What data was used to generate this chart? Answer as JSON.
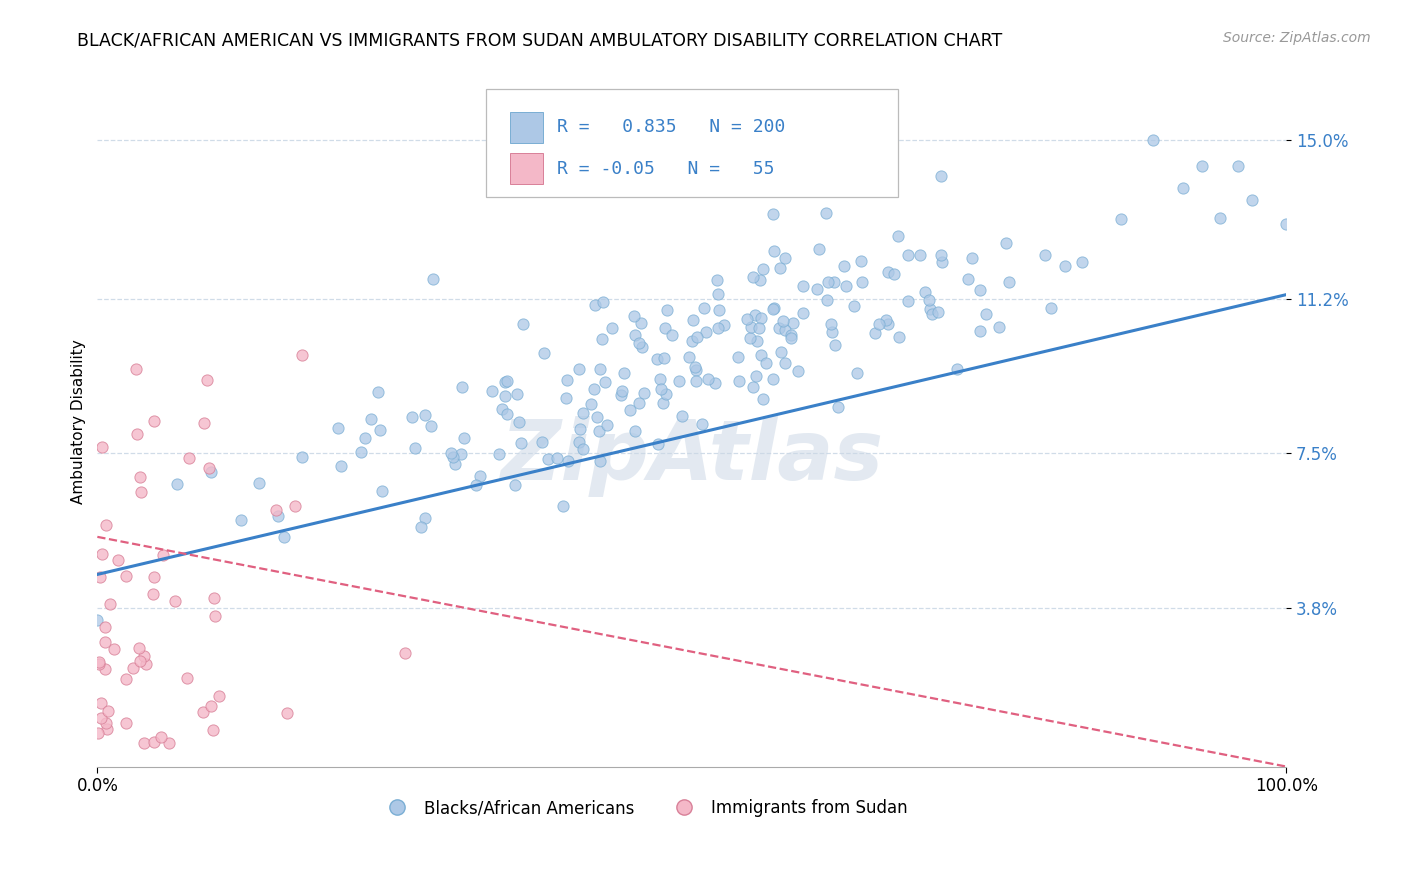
{
  "title": "BLACK/AFRICAN AMERICAN VS IMMIGRANTS FROM SUDAN AMBULATORY DISABILITY CORRELATION CHART",
  "source": "Source: ZipAtlas.com",
  "ylabel": "Ambulatory Disability",
  "xmin": 0.0,
  "xmax": 100.0,
  "ymin": 0.0,
  "ymax": 0.165,
  "yticks": [
    0.038,
    0.075,
    0.112,
    0.15
  ],
  "ytick_labels": [
    "3.8%",
    "7.5%",
    "11.2%",
    "15.0%"
  ],
  "xtick_labels": [
    "0.0%",
    "100.0%"
  ],
  "blue_R": 0.835,
  "blue_N": 200,
  "pink_R": -0.05,
  "pink_N": 55,
  "blue_color": "#adc8e6",
  "blue_line_color": "#3a80c8",
  "blue_edge_color": "#7aaed4",
  "pink_color": "#f4b8c8",
  "pink_line_color": "#e06080",
  "pink_edge_color": "#d88098",
  "label_color": "#3a80c8",
  "grid_color": "#d0dce8",
  "watermark_color": "#ccd8e6",
  "legend_label_blue": "Blacks/African Americans",
  "legend_label_pink": "Immigrants from Sudan",
  "blue_trend_start_y": 0.046,
  "blue_trend_end_y": 0.113,
  "pink_trend_start_y": 0.055,
  "pink_trend_end_y": 0.0,
  "figsize": [
    14.06,
    8.92
  ],
  "dpi": 100
}
